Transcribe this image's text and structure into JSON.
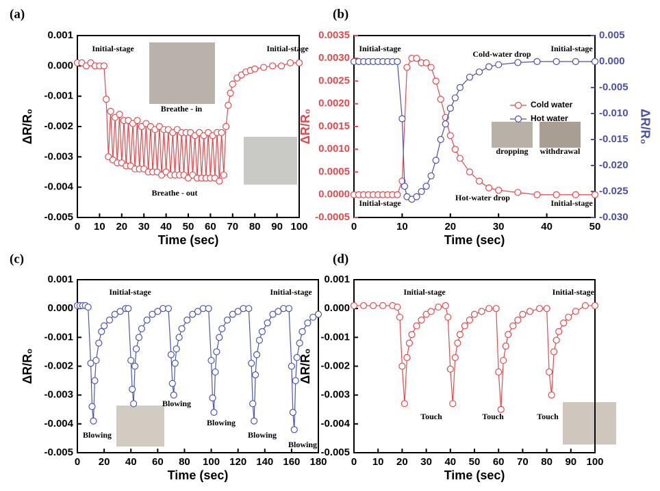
{
  "chart_data": [
    {
      "type": "line",
      "panel_label": "(a)",
      "xlabel": "Time (sec)",
      "ylabel": "ΔR/R₀",
      "color": "#e8474a",
      "xlim": [
        0,
        100
      ],
      "xticks": [
        0,
        10,
        20,
        30,
        40,
        50,
        60,
        70,
        80,
        90,
        100
      ],
      "ylim": [
        -0.005,
        0.001
      ],
      "yticks": [
        0.001,
        {
          "value": 0,
          "label": "0.000"
        },
        -0.001,
        -0.002,
        -0.003,
        -0.004,
        -0.005
      ],
      "annotations": [
        "Initial-stage",
        "Initial-stage",
        "Breathe - in",
        "Breathe - out"
      ],
      "series": [
        {
          "color": "#e8474a",
          "x": [
            0,
            2,
            4,
            6,
            8,
            10,
            12,
            13,
            14,
            15,
            16,
            17,
            18,
            19,
            20,
            21,
            22,
            23,
            24,
            25,
            26,
            27,
            28,
            29,
            30,
            31,
            32,
            33,
            34,
            35,
            36,
            37,
            38,
            39,
            40,
            41,
            42,
            43,
            44,
            45,
            46,
            47,
            48,
            49,
            50,
            51,
            52,
            53,
            54,
            55,
            56,
            57,
            58,
            59,
            60,
            61,
            62,
            63,
            64,
            65,
            66,
            67,
            68,
            69,
            70,
            72,
            74,
            76,
            78,
            80,
            84,
            88,
            92,
            96,
            100
          ],
          "values": [
            0.0001,
            0.0001,
            0,
            0.0001,
            0,
            0,
            0,
            -0.0011,
            -0.003,
            -0.0015,
            -0.0031,
            -0.0017,
            -0.0032,
            -0.0016,
            -0.0032,
            -0.0018,
            -0.0033,
            -0.0018,
            -0.0033,
            -0.0019,
            -0.0034,
            -0.0018,
            -0.0034,
            -0.002,
            -0.0034,
            -0.0019,
            -0.0035,
            -0.002,
            -0.0035,
            -0.0021,
            -0.0035,
            -0.002,
            -0.0036,
            -0.0021,
            -0.0035,
            -0.0021,
            -0.0036,
            -0.0022,
            -0.0036,
            -0.0021,
            -0.0036,
            -0.0022,
            -0.0036,
            -0.0022,
            -0.0037,
            -0.0022,
            -0.0036,
            -0.0023,
            -0.0037,
            -0.0022,
            -0.0037,
            -0.0023,
            -0.0037,
            -0.0022,
            -0.0037,
            -0.0023,
            -0.0037,
            -0.0022,
            -0.0038,
            -0.0022,
            -0.0036,
            -0.002,
            -0.0013,
            -0.0009,
            -0.0006,
            -0.0004,
            -0.0003,
            -0.0002,
            -0.00015,
            -0.0001,
            -5e-05,
            0,
            0,
            0.0001,
            0.0001
          ]
        }
      ]
    },
    {
      "type": "line",
      "panel_label": "(b)",
      "xlabel": "Time (sec)",
      "ylabel": "ΔR/R₀",
      "y2label": "ΔR/R₀",
      "xlim": [
        0,
        50
      ],
      "xticks": [
        0,
        10,
        20,
        30,
        40,
        50
      ],
      "ylim": [
        -0.0005,
        0.0035
      ],
      "yticks": [
        0.0035,
        {
          "value": 0.003,
          "label": "0.0030"
        },
        0.0025,
        {
          "value": 0.002,
          "label": "0.0020"
        },
        0.0015,
        {
          "value": 0.001,
          "label": "0.0010"
        },
        0.0005,
        {
          "value": 0,
          "label": "0.0000"
        },
        -0.0005
      ],
      "y2lim": [
        -0.03,
        0.005
      ],
      "y2ticks": [
        0.005,
        {
          "value": 0,
          "label": "0.000"
        },
        -0.005,
        {
          "value": -0.01,
          "label": "-0.010"
        },
        -0.015,
        {
          "value": -0.02,
          "label": "-0.020"
        },
        -0.025,
        {
          "value": -0.03,
          "label": "-0.030"
        }
      ],
      "annotations": [
        "Initial-stage",
        "Cold-water drop",
        "Initial-stage",
        "Initial-stage",
        "Hot-water drop",
        "Initial-stage",
        "dropping",
        "withdrawal"
      ],
      "series": [
        {
          "name": "Cold water",
          "color": "#e8474a",
          "x": [
            0,
            1,
            2,
            3,
            4,
            5,
            6,
            7,
            8,
            9,
            10,
            11,
            12,
            13,
            14,
            15,
            16,
            17,
            18,
            19,
            20,
            21,
            22,
            24,
            26,
            28,
            30,
            34,
            38,
            42,
            46,
            50
          ],
          "values": [
            0,
            0,
            0,
            0,
            0,
            0,
            0,
            0,
            0,
            0,
            0.0003,
            0.0028,
            0.003,
            0.003,
            0.0029,
            0.0029,
            0.0028,
            0.0025,
            0.0021,
            0.0017,
            0.0013,
            0.001,
            0.0008,
            0.0005,
            0.0003,
            0.00015,
            0.0001,
            5e-05,
            0,
            0,
            0,
            0
          ]
        },
        {
          "name": "Hot water",
          "color": "#4a4fa8",
          "axis": "y2",
          "x": [
            0,
            1,
            2,
            3,
            4,
            5,
            6,
            7,
            8,
            9,
            10,
            10.5,
            11,
            12,
            13,
            14,
            15,
            16,
            17,
            18,
            19,
            20,
            21,
            22,
            24,
            26,
            28,
            30,
            34,
            38,
            42,
            46,
            50
          ],
          "values": [
            0,
            0,
            0,
            0,
            0,
            0,
            0,
            0,
            0,
            0,
            -0.011,
            -0.024,
            -0.026,
            -0.0265,
            -0.026,
            -0.025,
            -0.024,
            -0.022,
            -0.019,
            -0.015,
            -0.012,
            -0.009,
            -0.007,
            -0.005,
            -0.003,
            -0.002,
            -0.001,
            -0.0006,
            -0.0002,
            0,
            0,
            0,
            0
          ]
        }
      ]
    },
    {
      "type": "line",
      "panel_label": "(c)",
      "xlabel": "Time (sec)",
      "ylabel": "ΔR/R₀",
      "color": "#4a55b5",
      "xlim": [
        0,
        180
      ],
      "xticks": [
        0,
        20,
        40,
        60,
        80,
        100,
        120,
        140,
        160,
        180
      ],
      "ylim": [
        -0.005,
        0.001
      ],
      "yticks": [
        0.001,
        {
          "value": 0,
          "label": "0.000"
        },
        -0.001,
        -0.002,
        -0.003,
        -0.004,
        -0.005
      ],
      "annotations": [
        "Initial-stage",
        "Initial-stage",
        "Blowing",
        "Blowing",
        "Blowing",
        "Blowing",
        "Blowing"
      ],
      "series": [
        {
          "color": "#4a55b5",
          "x": [
            0,
            2,
            4,
            6,
            8,
            10,
            11,
            12,
            13,
            14,
            16,
            18,
            20,
            24,
            28,
            32,
            36,
            38,
            40,
            41,
            42,
            43,
            44,
            46,
            48,
            52,
            56,
            60,
            64,
            68,
            70,
            71,
            72,
            73,
            74,
            76,
            78,
            82,
            86,
            90,
            94,
            98,
            100,
            101,
            102,
            103,
            104,
            106,
            108,
            112,
            116,
            120,
            124,
            128,
            130,
            131,
            132,
            133,
            134,
            136,
            138,
            142,
            146,
            150,
            154,
            158,
            160,
            161,
            162,
            163,
            164,
            166,
            168,
            172,
            176,
            180
          ],
          "values": [
            0.0001,
            0.0001,
            0.0001,
            0.0001,
            5e-05,
            -0.0019,
            -0.0034,
            -0.0039,
            -0.0025,
            -0.0018,
            -0.0012,
            -0.0008,
            -0.0006,
            -0.0004,
            -0.0002,
            -0.0001,
            0,
            0,
            -0.0018,
            -0.0028,
            -0.0033,
            -0.002,
            -0.0014,
            -0.001,
            -0.0007,
            -0.0004,
            -0.0002,
            -0.0001,
            0,
            0,
            -0.0016,
            -0.0026,
            -0.003,
            -0.0019,
            -0.0014,
            -0.001,
            -0.0007,
            -0.0004,
            -0.0002,
            -0.0001,
            0,
            0,
            -0.0018,
            -0.0031,
            -0.0036,
            -0.0022,
            -0.0015,
            -0.001,
            -0.0007,
            -0.0004,
            -0.0002,
            -0.0001,
            0,
            0,
            -0.0019,
            -0.0033,
            -0.0039,
            -0.0023,
            -0.0016,
            -0.0011,
            -0.0008,
            -0.0005,
            -0.0002,
            -0.0001,
            0,
            0,
            -0.002,
            -0.0036,
            -0.0042,
            -0.0025,
            -0.0017,
            -0.0012,
            -0.0008,
            -0.0005,
            -0.0003,
            -0.0002
          ]
        }
      ]
    },
    {
      "type": "line",
      "panel_label": "(d)",
      "xlabel": "Time (sec)",
      "ylabel": "ΔR/R₀",
      "color": "#e8474a",
      "xlim": [
        0,
        100
      ],
      "xticks": [
        0,
        10,
        20,
        30,
        40,
        50,
        60,
        70,
        80,
        90,
        100
      ],
      "ylim": [
        -0.005,
        0.001
      ],
      "yticks": [
        0.001,
        {
          "value": 0,
          "label": "0.000"
        },
        -0.001,
        -0.002,
        -0.003,
        -0.004,
        -0.005
      ],
      "annotations": [
        "Initial-stage",
        "Initial-stage",
        "Touch",
        "Touch",
        "Touch"
      ],
      "series": [
        {
          "color": "#e8474a",
          "x": [
            0,
            4,
            8,
            12,
            16,
            18,
            19,
            20,
            21,
            22,
            23,
            24,
            26,
            28,
            30,
            32,
            35,
            38,
            39,
            40,
            41,
            42,
            43,
            44,
            46,
            48,
            50,
            53,
            56,
            59,
            60,
            61,
            62,
            63,
            64,
            66,
            68,
            70,
            73,
            77,
            80,
            81,
            82,
            83,
            84,
            85,
            87,
            89,
            92,
            96,
            100
          ],
          "values": [
            0.0001,
            0.0001,
            0.0001,
            0.0001,
            0.0001,
            5e-05,
            -0.0003,
            -0.002,
            -0.0033,
            -0.0017,
            -0.0012,
            -0.0009,
            -0.0006,
            -0.0004,
            -0.0002,
            -0.0001,
            5e-05,
            0.0001,
            -0.0003,
            -0.0021,
            -0.0033,
            -0.0017,
            -0.0012,
            -0.0009,
            -0.0006,
            -0.0004,
            -0.0002,
            -0.0001,
            0,
            0,
            -0.0022,
            -0.0035,
            -0.0018,
            -0.0013,
            -0.0009,
            -0.0006,
            -0.0004,
            -0.0002,
            -0.0001,
            0,
            0,
            -0.0022,
            -0.003,
            -0.0015,
            -0.0011,
            -0.0008,
            -0.0005,
            -0.0003,
            -0.0001,
            0.0001,
            0.0001
          ]
        }
      ]
    }
  ]
}
